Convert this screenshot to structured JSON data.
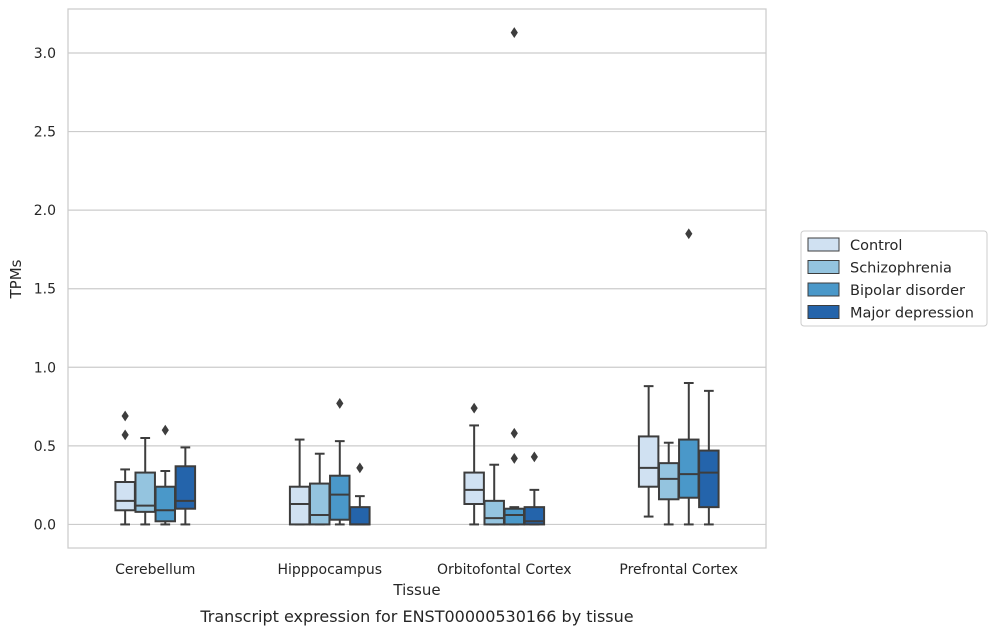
{
  "caption": "Transcript expression for ENST00000530166 by tissue",
  "chart_data": {
    "type": "box",
    "xlabel": "Tissue",
    "ylabel": "TPMs",
    "ylim": [
      -0.15,
      3.28
    ],
    "yticks": [
      "0.0",
      "0.5",
      "1.0",
      "1.5",
      "2.0",
      "2.5",
      "3.0"
    ],
    "grid": "horizontal",
    "legend_position": "right",
    "categories": [
      "Cerebellum",
      "Hipppocampus",
      "Orbitofontal Cortex",
      "Prefrontal Cortex"
    ],
    "series": [
      {
        "name": "Control",
        "color": "#d0e1f2",
        "boxes": [
          {
            "whisker_low": 0.0,
            "q1": 0.09,
            "median": 0.15,
            "q3": 0.27,
            "whisker_high": 0.35,
            "outliers": [
              0.57,
              0.69
            ]
          },
          {
            "whisker_low": 0.0,
            "q1": 0.0,
            "median": 0.13,
            "q3": 0.24,
            "whisker_high": 0.54,
            "outliers": []
          },
          {
            "whisker_low": 0.0,
            "q1": 0.13,
            "median": 0.22,
            "q3": 0.33,
            "whisker_high": 0.63,
            "outliers": [
              0.74
            ]
          },
          {
            "whisker_low": 0.05,
            "q1": 0.24,
            "median": 0.36,
            "q3": 0.56,
            "whisker_high": 0.88,
            "outliers": []
          }
        ]
      },
      {
        "name": "Schizophrenia",
        "color": "#94c4df",
        "boxes": [
          {
            "whisker_low": 0.0,
            "q1": 0.08,
            "median": 0.12,
            "q3": 0.33,
            "whisker_high": 0.55,
            "outliers": []
          },
          {
            "whisker_low": 0.0,
            "q1": 0.0,
            "median": 0.06,
            "q3": 0.26,
            "whisker_high": 0.45,
            "outliers": []
          },
          {
            "whisker_low": 0.0,
            "q1": 0.0,
            "median": 0.04,
            "q3": 0.15,
            "whisker_high": 0.38,
            "outliers": []
          },
          {
            "whisker_low": 0.0,
            "q1": 0.16,
            "median": 0.29,
            "q3": 0.39,
            "whisker_high": 0.52,
            "outliers": []
          }
        ]
      },
      {
        "name": "Bipolar disorder",
        "color": "#4a98c9",
        "boxes": [
          {
            "whisker_low": 0.0,
            "q1": 0.02,
            "median": 0.09,
            "q3": 0.24,
            "whisker_high": 0.34,
            "outliers": [
              0.6
            ]
          },
          {
            "whisker_low": 0.0,
            "q1": 0.03,
            "median": 0.19,
            "q3": 0.31,
            "whisker_high": 0.53,
            "outliers": [
              0.77
            ]
          },
          {
            "whisker_low": 0.0,
            "q1": 0.0,
            "median": 0.06,
            "q3": 0.1,
            "whisker_high": 0.11,
            "outliers": [
              0.42,
              0.58,
              3.13
            ]
          },
          {
            "whisker_low": 0.0,
            "q1": 0.17,
            "median": 0.32,
            "q3": 0.54,
            "whisker_high": 0.9,
            "outliers": [
              1.85
            ]
          }
        ]
      },
      {
        "name": "Major depression",
        "color": "#2464ab",
        "boxes": [
          {
            "whisker_low": 0.0,
            "q1": 0.1,
            "median": 0.15,
            "q3": 0.37,
            "whisker_high": 0.49,
            "outliers": []
          },
          {
            "whisker_low": 0.0,
            "q1": 0.0,
            "median": 0.0,
            "q3": 0.11,
            "whisker_high": 0.18,
            "outliers": [
              0.36
            ]
          },
          {
            "whisker_low": 0.0,
            "q1": 0.0,
            "median": 0.02,
            "q3": 0.11,
            "whisker_high": 0.22,
            "outliers": [
              0.43
            ]
          },
          {
            "whisker_low": 0.0,
            "q1": 0.11,
            "median": 0.33,
            "q3": 0.47,
            "whisker_high": 0.85,
            "outliers": []
          }
        ]
      }
    ]
  }
}
